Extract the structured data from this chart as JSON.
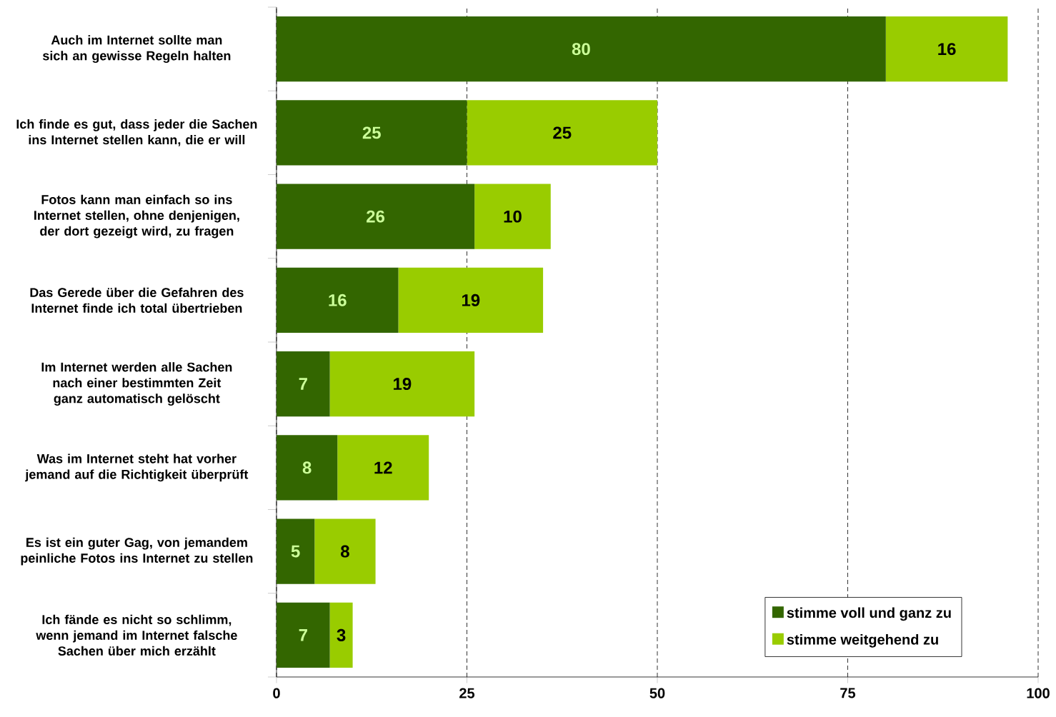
{
  "chart_data": {
    "type": "bar",
    "orientation": "horizontal",
    "stacked": true,
    "categories": [
      "Auch im Internet sollte man sich an gewisse Regeln halten",
      "Ich finde es gut, dass jeder die Sachen ins Internet stellen kann, die er will",
      "Fotos kann man einfach so ins Internet stellen, ohne denjenigen, der dort gezeigt wird, zu fragen",
      "Das Gerede über die Gefahren des Internet finde ich total übertrieben",
      "Im Internet werden alle Sachen nach einer bestimmten Zeit ganz automatisch gelöscht",
      "Was im Internet steht hat vorher jemand auf die Richtigkeit überprüft",
      "Es ist ein guter Gag, von jemandem peinliche Fotos ins Internet zu stellen",
      "Ich fände es nicht so schlimm, wenn jemand im Internet falsche Sachen über mich erzählt"
    ],
    "series": [
      {
        "name": "stimme voll und ganz zu",
        "color": "#336600",
        "values": [
          80,
          25,
          26,
          16,
          7,
          8,
          5,
          7
        ]
      },
      {
        "name": "stimme weitgehend zu",
        "color": "#99cc00",
        "values": [
          16,
          25,
          10,
          19,
          19,
          12,
          8,
          3
        ]
      }
    ],
    "xlim": [
      0,
      100
    ],
    "xticks": [
      0,
      25,
      50,
      75,
      100
    ],
    "grid": "x",
    "legend": "bottom right",
    "data_labels": true
  }
}
